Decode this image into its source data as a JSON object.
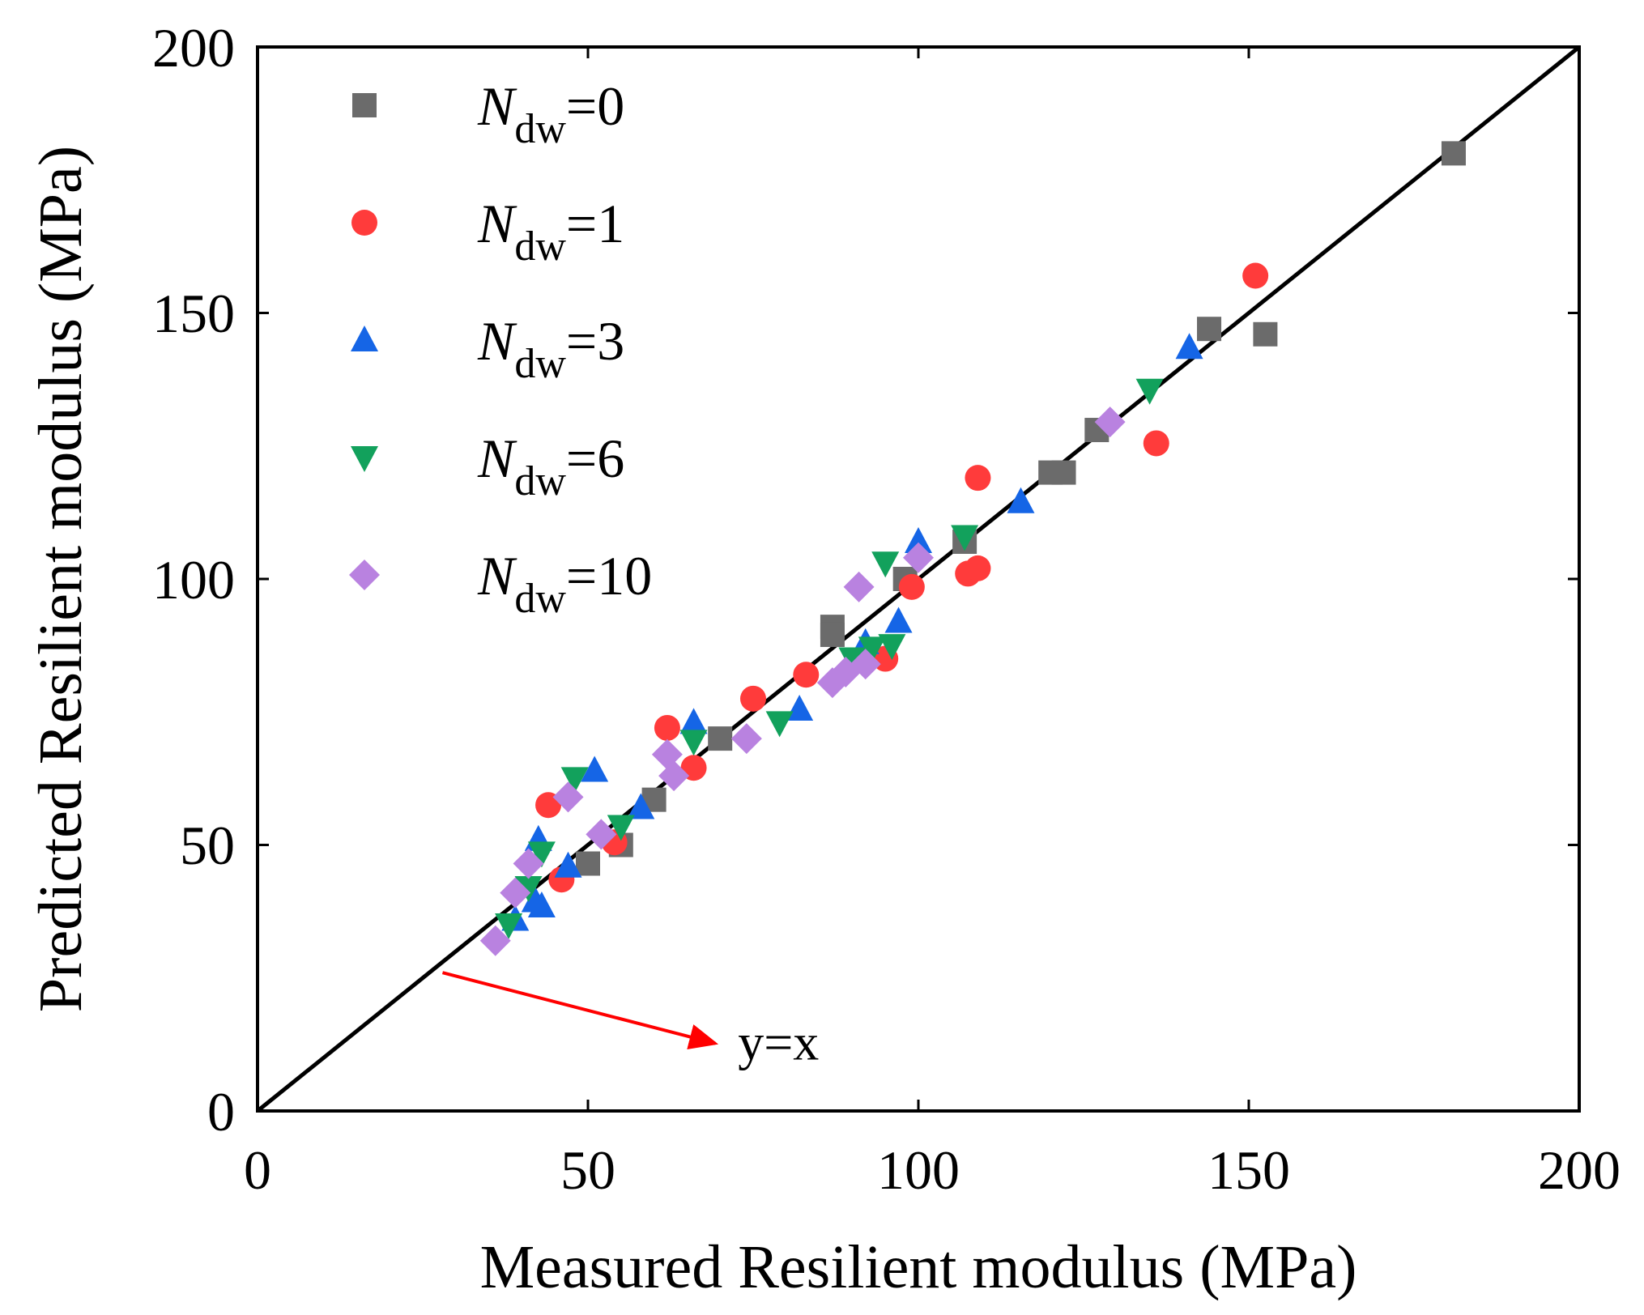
{
  "chart_data": {
    "type": "scatter",
    "title": "",
    "xlabel": "Measured Resilient modulus (MPa)",
    "ylabel": "Predicted Resilient modulus (MPa)",
    "xlim": [
      0,
      200
    ],
    "ylim": [
      0,
      200
    ],
    "xticks": [
      0,
      50,
      100,
      150,
      200
    ],
    "yticks": [
      0,
      50,
      100,
      150,
      200
    ],
    "grid": false,
    "legend_position": "top-left",
    "reference_line": {
      "label": "y=x",
      "from": [
        0,
        0
      ],
      "to": [
        200,
        200
      ],
      "color": "#000000"
    },
    "annotation": {
      "text": "y=x",
      "arrow_from": [
        28,
        26
      ],
      "arrow_to": [
        70,
        13
      ],
      "color": "#ff0000"
    },
    "series": [
      {
        "name": "Ndw=0",
        "symbol": "N",
        "subscript": "dw",
        "suffix": "=0",
        "marker": "square",
        "color": "#6b6b6b",
        "points": [
          [
            55,
            50
          ],
          [
            50,
            46.5
          ],
          [
            60,
            58.5
          ],
          [
            70,
            70
          ],
          [
            87,
            91
          ],
          [
            87,
            89.5
          ],
          [
            98,
            100
          ],
          [
            107,
            107
          ],
          [
            120,
            120
          ],
          [
            122,
            120
          ],
          [
            127,
            128
          ],
          [
            144,
            147
          ],
          [
            152.5,
            146
          ],
          [
            181,
            180
          ]
        ]
      },
      {
        "name": "Ndw=1",
        "symbol": "N",
        "subscript": "dw",
        "suffix": "=1",
        "marker": "circle",
        "color": "#ff3b3b",
        "points": [
          [
            44,
            57.5
          ],
          [
            46,
            43.5
          ],
          [
            54,
            50.5
          ],
          [
            62,
            72
          ],
          [
            66,
            64.5
          ],
          [
            75,
            77.5
          ],
          [
            83,
            82
          ],
          [
            95,
            85
          ],
          [
            99,
            98.5
          ],
          [
            107.5,
            101
          ],
          [
            109,
            102
          ],
          [
            109,
            119
          ],
          [
            136,
            125.5
          ],
          [
            151,
            157
          ]
        ]
      },
      {
        "name": "Ndw=3",
        "symbol": "N",
        "subscript": "dw",
        "suffix": "=3",
        "marker": "triangle-up",
        "color": "#1565e6",
        "points": [
          [
            39,
            36
          ],
          [
            42,
            39.5
          ],
          [
            43,
            38.5
          ],
          [
            42.5,
            51
          ],
          [
            47,
            46
          ],
          [
            51,
            64
          ],
          [
            58,
            57
          ],
          [
            66,
            73
          ],
          [
            82,
            75.5
          ],
          [
            92,
            88
          ],
          [
            97,
            92
          ],
          [
            100,
            107
          ],
          [
            115.5,
            114.5
          ],
          [
            141,
            143.5
          ]
        ]
      },
      {
        "name": "Ndw=6",
        "symbol": "N",
        "subscript": "dw",
        "suffix": "=6",
        "marker": "triangle-down",
        "color": "#12a15c",
        "points": [
          [
            38,
            35
          ],
          [
            41,
            42
          ],
          [
            43,
            48.5
          ],
          [
            48,
            62.5
          ],
          [
            55,
            53.5
          ],
          [
            66,
            69.5
          ],
          [
            79,
            73
          ],
          [
            90,
            85
          ],
          [
            93,
            87
          ],
          [
            96,
            87.5
          ],
          [
            95,
            103
          ],
          [
            107,
            108
          ],
          [
            135,
            135.5
          ]
        ]
      },
      {
        "name": "Ndw=10",
        "symbol": "N",
        "subscript": "dw",
        "suffix": "=10",
        "marker": "diamond",
        "color": "#b982e0",
        "points": [
          [
            36,
            32
          ],
          [
            39,
            41
          ],
          [
            41,
            46.5
          ],
          [
            47,
            59
          ],
          [
            52,
            52
          ],
          [
            62,
            67
          ],
          [
            63,
            63
          ],
          [
            74,
            70
          ],
          [
            87,
            80.5
          ],
          [
            89,
            82.5
          ],
          [
            91,
            98.5
          ],
          [
            92,
            84
          ],
          [
            100,
            104
          ],
          [
            129,
            129.5
          ]
        ]
      }
    ]
  }
}
